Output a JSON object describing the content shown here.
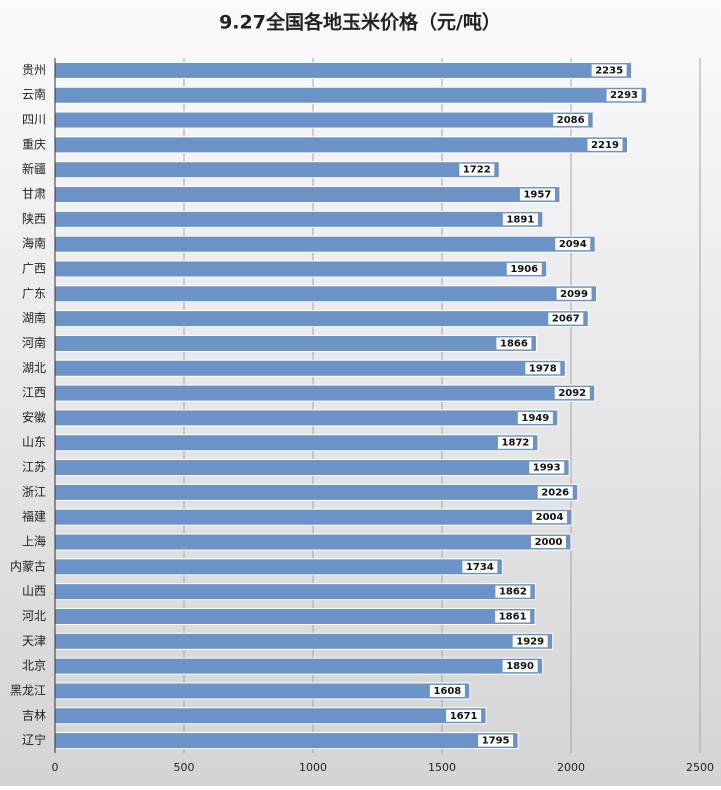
{
  "chart_data": {
    "type": "bar",
    "orientation": "horizontal",
    "title": "9.27全国各地玉米价格（元/吨）",
    "categories": [
      "贵州",
      "云南",
      "四川",
      "重庆",
      "新疆",
      "甘肃",
      "陕西",
      "海南",
      "广西",
      "广东",
      "湖南",
      "河南",
      "湖北",
      "江西",
      "安徽",
      "山东",
      "江苏",
      "浙江",
      "福建",
      "上海",
      "内蒙古",
      "山西",
      "河北",
      "天津",
      "北京",
      "黑龙江",
      "吉林",
      "辽宁"
    ],
    "values": [
      2235,
      2293,
      2086,
      2219,
      1722,
      1957,
      1891,
      2094,
      1906,
      2099,
      2067,
      1866,
      1978,
      2092,
      1949,
      1872,
      1993,
      2026,
      2004,
      2000,
      1734,
      1862,
      1861,
      1929,
      1890,
      1608,
      1671,
      1795
    ],
    "color": "#6b93c8",
    "xlim": [
      0,
      2500
    ],
    "xticks": [
      0,
      500,
      1000,
      1500,
      2000,
      2500
    ],
    "grid": true
  }
}
